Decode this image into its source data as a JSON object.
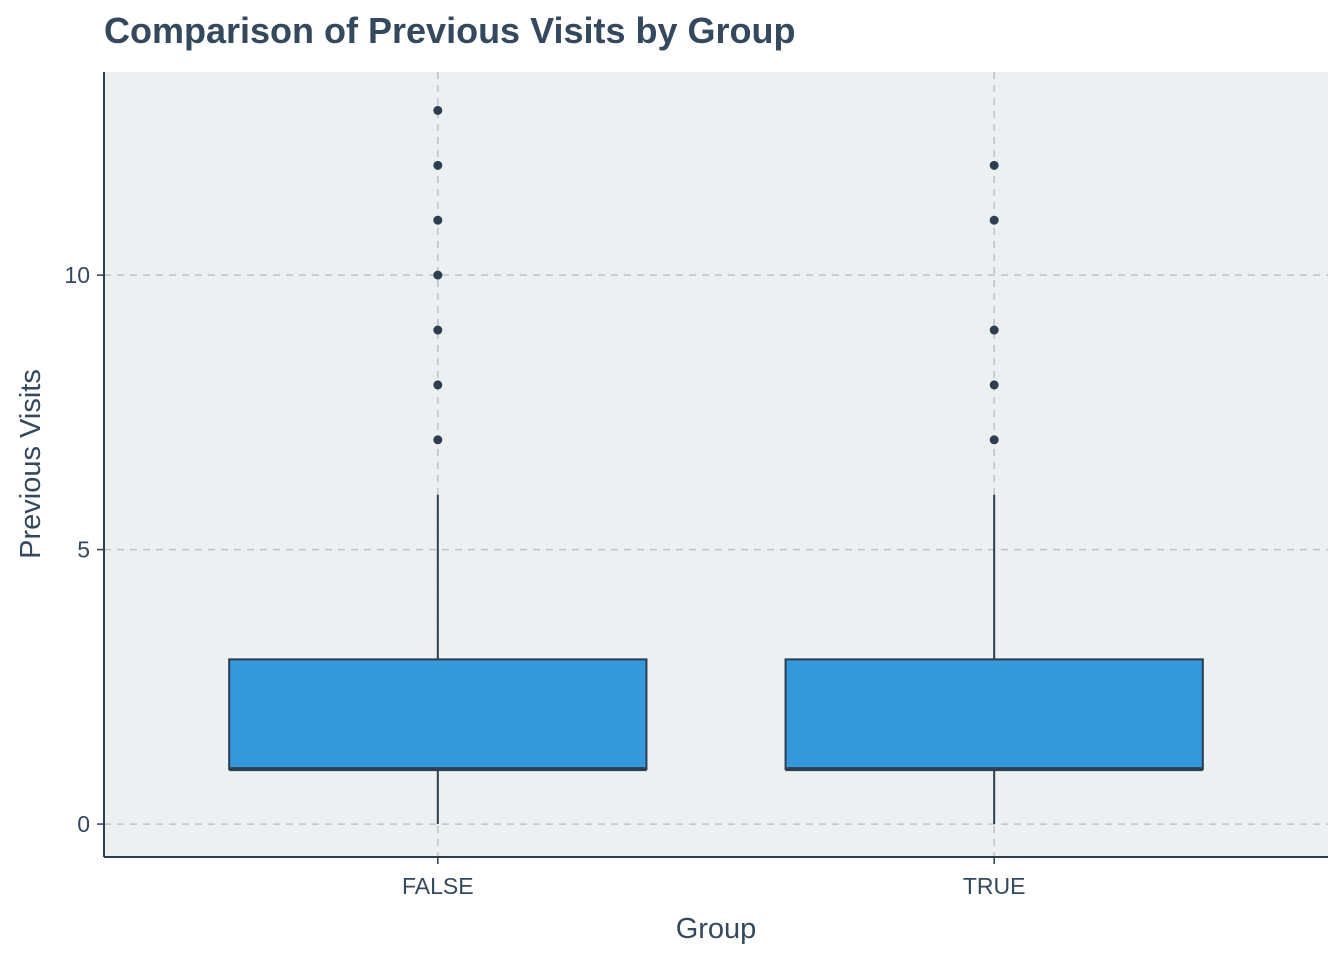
{
  "chart_data": {
    "type": "boxplot",
    "title": "Comparison of Previous Visits by Group",
    "xlabel": "Group",
    "ylabel": "Previous Visits",
    "categories": [
      "FALSE",
      "TRUE"
    ],
    "y_ticks": [
      0,
      5,
      10
    ],
    "ylim": [
      -0.6,
      13.7
    ],
    "grid": true,
    "legend": "none",
    "boxes": [
      {
        "category": "FALSE",
        "min": 0,
        "q1": 1,
        "median": 1,
        "q3": 3,
        "max": 6,
        "outliers": [
          7,
          8,
          9,
          10,
          11,
          12,
          13
        ]
      },
      {
        "category": "TRUE",
        "min": 0,
        "q1": 1,
        "median": 1,
        "q3": 3,
        "max": 6,
        "outliers": [
          7,
          8,
          9,
          11,
          12
        ]
      }
    ],
    "colors": {
      "box_fill": "#3498db",
      "box_stroke": "#2c3e50",
      "panel_background": "#ecf0f1",
      "grid": "#bdc3c7",
      "text": "#34495e"
    }
  }
}
